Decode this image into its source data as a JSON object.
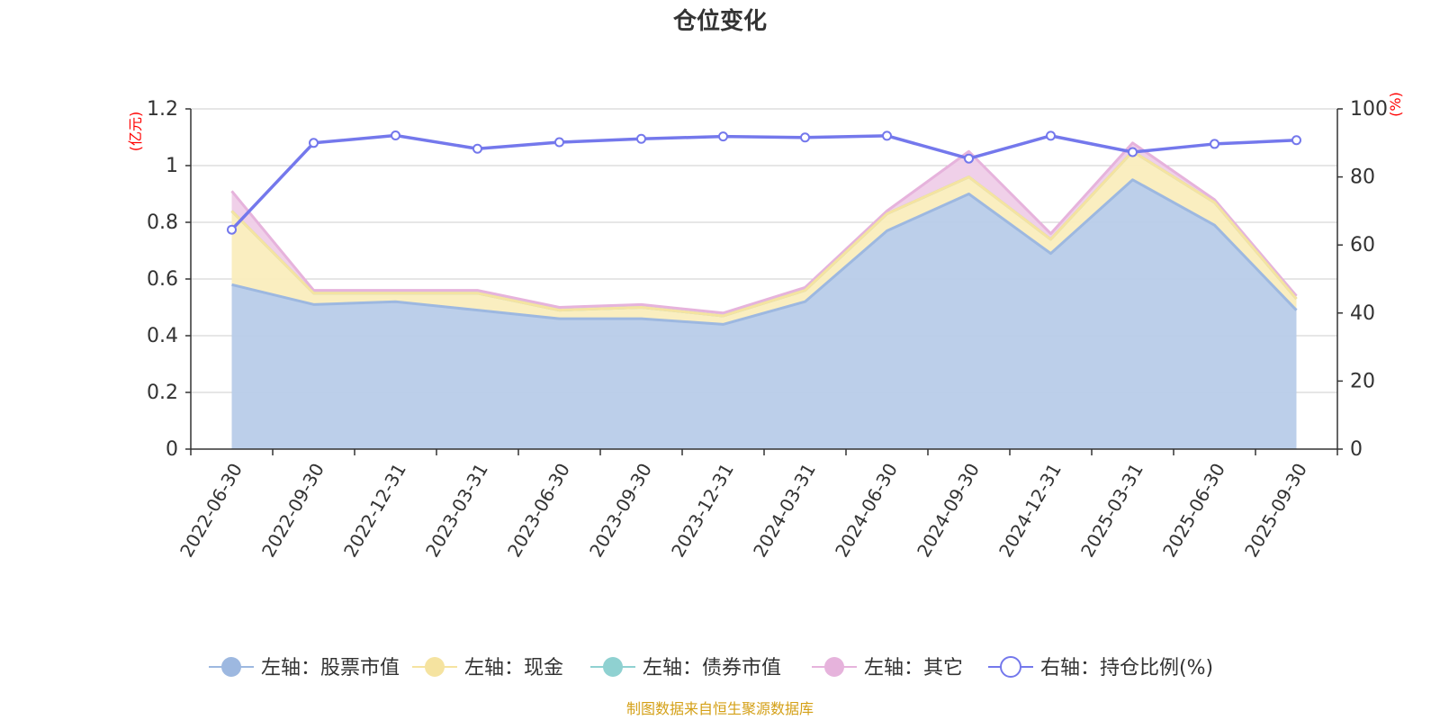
{
  "colors": {
    "stock": "#9db8e0",
    "stock_fill": "#b8cce9",
    "cash": "#f5e3a0",
    "cash_fill": "#faedbd",
    "bond": "#8fd1d1",
    "other": "#e6b3dc",
    "other_fill": "#efcde8",
    "ratio": "#7478ec",
    "grid": "#cccccc",
    "axis": "#333333",
    "unit": "#ff0000",
    "source": "#d4a017"
  },
  "chart_data": {
    "type": "area",
    "title": "仓位变化",
    "categories": [
      "2022-06-30",
      "2022-09-30",
      "2022-12-31",
      "2023-03-31",
      "2023-06-30",
      "2023-09-30",
      "2023-12-31",
      "2024-03-31",
      "2024-06-30",
      "2024-09-30",
      "2024-12-31",
      "2025-03-31",
      "2025-06-30",
      "2025-09-30"
    ],
    "left_axis": {
      "unit": "(亿元)",
      "ylim": [
        0,
        1.2
      ],
      "ticks": [
        "0",
        "0.2",
        "0.4",
        "0.6",
        "0.8",
        "1",
        "1.2"
      ]
    },
    "right_axis": {
      "unit": "(%)",
      "ylim": [
        0,
        100
      ],
      "ticks": [
        "0",
        "20",
        "40",
        "60",
        "80",
        "100"
      ]
    },
    "grid": true,
    "legend_position": "bottom",
    "series": [
      {
        "key": "stock",
        "name": "左轴：股票市值",
        "axis": "left",
        "stack": true,
        "values": [
          0.58,
          0.51,
          0.52,
          0.49,
          0.46,
          0.46,
          0.44,
          0.52,
          0.77,
          0.9,
          0.69,
          0.95,
          0.79,
          0.49
        ]
      },
      {
        "key": "cash",
        "name": "左轴：现金",
        "axis": "left",
        "stack": true,
        "values": [
          0.26,
          0.04,
          0.03,
          0.06,
          0.03,
          0.04,
          0.03,
          0.04,
          0.06,
          0.06,
          0.05,
          0.1,
          0.08,
          0.04
        ]
      },
      {
        "key": "bond",
        "name": "左轴：债券市值",
        "axis": "left",
        "stack": true,
        "values": [
          0,
          0,
          0,
          0,
          0,
          0,
          0,
          0,
          0,
          0,
          0,
          0,
          0,
          0
        ]
      },
      {
        "key": "other",
        "name": "左轴：其它",
        "axis": "left",
        "stack": true,
        "values": [
          0.07,
          0.01,
          0.01,
          0.01,
          0.01,
          0.01,
          0.01,
          0.01,
          0.01,
          0.09,
          0.02,
          0.03,
          0.01,
          0.01
        ]
      },
      {
        "key": "ratio",
        "name": "右轴：持仓比例(%)",
        "axis": "right",
        "stack": false,
        "values": [
          64.5,
          90.0,
          92.2,
          88.3,
          90.2,
          91.2,
          91.9,
          91.6,
          92.1,
          85.4,
          92.1,
          87.3,
          89.7,
          90.8
        ]
      }
    ],
    "source_note": "制图数据来自恒生聚源数据库"
  }
}
